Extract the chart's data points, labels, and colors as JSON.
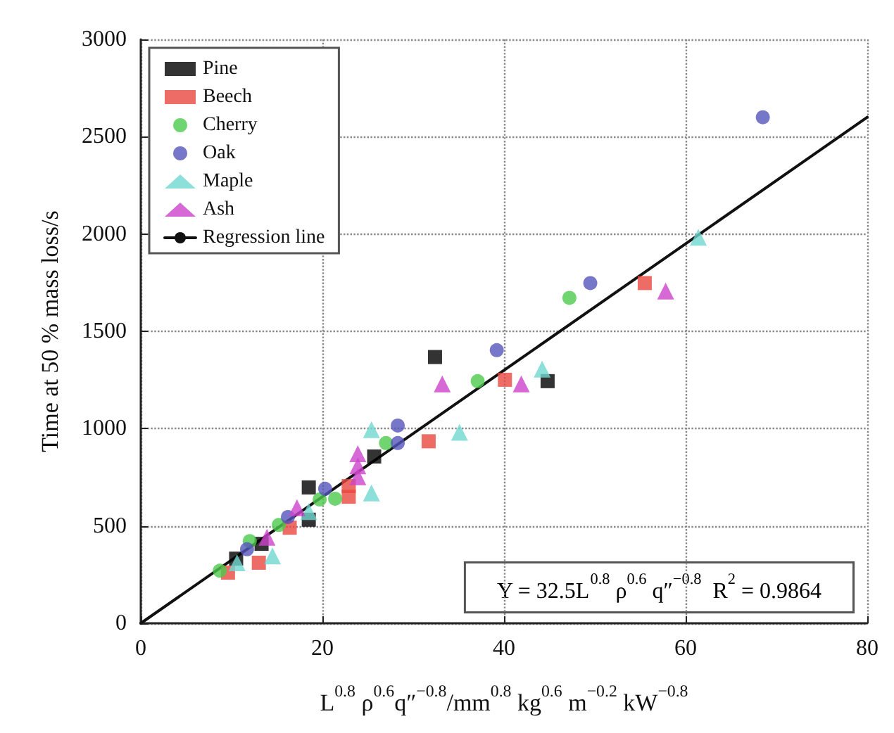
{
  "chart_data": {
    "type": "scatter",
    "xlabel": "L$^{0.8}$ ρ$^{0.6}$q″$^{−0.8}$/mm$^{0.8}$ kg$^{0.6}$ m$^{−0.2}$ kW$^{−0.8}$",
    "ylabel": "Time at 50 % mass loss/s",
    "annotations": [
      "Y = 32.5L$^{0.8}$ ρ$^{0.6}$ q″$^{−0.8}$  R$^{2}$ = 0.9864"
    ],
    "xlim": [
      0,
      80
    ],
    "xticks": [
      0,
      20,
      40,
      60,
      80
    ],
    "ylim": [
      0,
      3000
    ],
    "yticks": [
      0,
      500,
      1000,
      1500,
      2000,
      2500,
      3000
    ],
    "grid": true,
    "legend": "top left",
    "series": [
      {
        "name": "Pine",
        "color": "#000000",
        "marker": "square",
        "x": [
          10.5,
          13.3,
          18.5,
          18.5,
          25.7,
          32.4,
          44.8
        ],
        "values": [
          332,
          408,
          532,
          698,
          857,
          1368,
          1244
        ]
      },
      {
        "name": "Beech",
        "color": "#e8473f",
        "marker": "square",
        "x": [
          9.6,
          13.0,
          16.4,
          22.9,
          22.9,
          31.7,
          40.1,
          55.5
        ],
        "values": [
          260,
          311,
          491,
          650,
          705,
          935,
          1251,
          1748
        ]
      },
      {
        "name": "Cherry",
        "color": "#4cc94c",
        "marker": "circle",
        "x": [
          8.7,
          12.0,
          15.2,
          19.7,
          21.4,
          27.0,
          37.1,
          47.2
        ],
        "values": [
          270,
          422,
          505,
          636,
          640,
          926,
          1244,
          1672
        ]
      },
      {
        "name": "Oak",
        "color": "#5555bb",
        "marker": "circle",
        "x": [
          11.7,
          16.2,
          20.3,
          28.3,
          28.3,
          39.2,
          49.5,
          68.5
        ],
        "values": [
          380,
          546,
          691,
          926,
          1016,
          1403,
          1748,
          2600
        ]
      },
      {
        "name": "Maple",
        "color": "#6fd8d0",
        "marker": "triangle",
        "x": [
          10.6,
          14.5,
          18.5,
          25.4,
          25.4,
          35.1,
          44.2,
          61.4
        ],
        "values": [
          311,
          346,
          574,
          670,
          995,
          981,
          1306,
          1983
        ]
      },
      {
        "name": "Ash",
        "color": "#cc44cc",
        "marker": "triangle",
        "x": [
          13.9,
          17.2,
          23.9,
          23.9,
          23.9,
          33.2,
          41.9,
          57.8
        ],
        "values": [
          442,
          594,
          753,
          809,
          871,
          1230,
          1230,
          1707
        ]
      },
      {
        "name": "Regression line",
        "type": "line",
        "color": "#111111",
        "marker": "none",
        "line_style": "solid",
        "x": [
          0,
          80
        ],
        "values": [
          0,
          2600
        ]
      }
    ]
  }
}
